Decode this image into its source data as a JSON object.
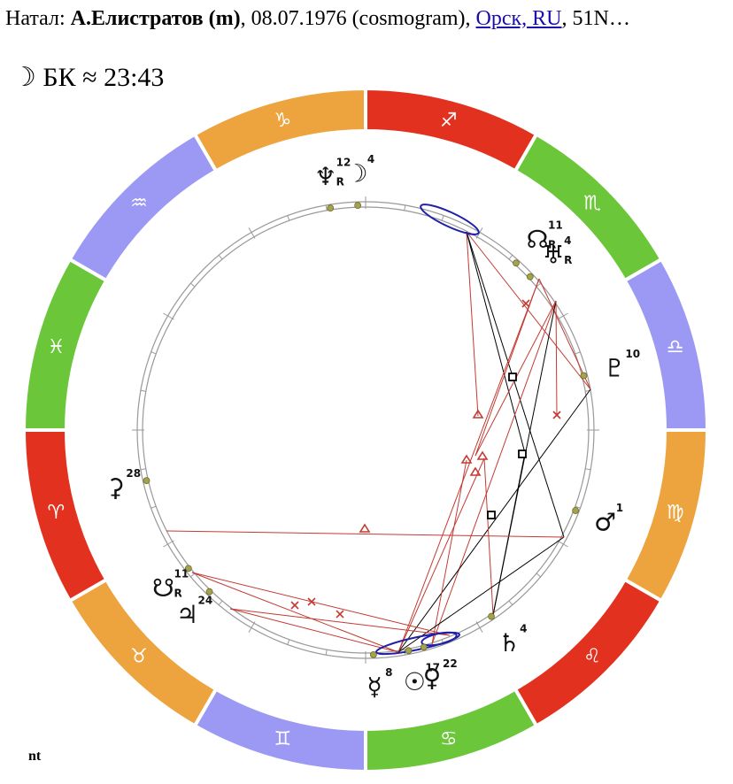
{
  "header": {
    "prefix": "Натал: ",
    "name": "А.Елистратов (m)",
    "date_text": ", 08.07.1976 (cosmogram), ",
    "place_link": "Орск, RU",
    "suffix": ", 51N…"
  },
  "subheader": {
    "moon_icon": "moon-crescent-icon",
    "text": "☽ БК ≈ 23:43"
  },
  "footer": {
    "text": "nt"
  },
  "colors": {
    "fire": "#e2311f",
    "earth": "#eea43e",
    "air": "#9c99f5",
    "water": "#6cc63a",
    "aspect_red": "#c43a33",
    "aspect_black": "#000000",
    "conjunction": "#1f1fa8",
    "planet_dot": "#a5a24a"
  },
  "wheel": {
    "signs": [
      {
        "name": "capricorn",
        "glyph": "♑",
        "element": "earth",
        "start": 0
      },
      {
        "name": "sagittarius",
        "glyph": "♐",
        "element": "fire",
        "start": 30
      },
      {
        "name": "scorpio",
        "glyph": "♏",
        "element": "water",
        "start": 60
      },
      {
        "name": "libra",
        "glyph": "♎",
        "element": "air",
        "start": 90
      },
      {
        "name": "virgo",
        "glyph": "♍",
        "element": "earth",
        "start": 120
      },
      {
        "name": "leo",
        "glyph": "♌",
        "element": "fire",
        "start": 150
      },
      {
        "name": "cancer",
        "glyph": "♋",
        "element": "water",
        "start": 180
      },
      {
        "name": "gemini",
        "glyph": "♊",
        "element": "air",
        "start": 210
      },
      {
        "name": "taurus",
        "glyph": "♉",
        "element": "earth",
        "start": 240
      },
      {
        "name": "aries",
        "glyph": "♈",
        "element": "fire",
        "start": 270
      },
      {
        "name": "pisces",
        "glyph": "♓",
        "element": "water",
        "start": 300
      },
      {
        "name": "aquarius",
        "glyph": "♒",
        "element": "air",
        "start": 330
      }
    ],
    "planets": [
      {
        "name": "neptune",
        "glyph": "♆",
        "degree": "12",
        "retro": true,
        "angle": -9
      },
      {
        "name": "moon",
        "glyph": "☽",
        "degree": "4",
        "angle": -2
      },
      {
        "name": "node",
        "glyph": "☊",
        "degree": "11",
        "retro": true,
        "angle": 42
      },
      {
        "name": "uranus",
        "glyph": "♅",
        "degree": "4",
        "retro": true,
        "angle": 47
      },
      {
        "name": "pluto",
        "glyph": "♇",
        "degree": "10",
        "angle": 76
      },
      {
        "name": "mars",
        "glyph": "♂",
        "degree": "1",
        "angle": 111
      },
      {
        "name": "saturn",
        "glyph": "♄",
        "degree": "4",
        "angle": 146
      },
      {
        "name": "venus",
        "glyph": "♀",
        "degree": "22",
        "angle": 165
      },
      {
        "name": "sun",
        "glyph": "☉",
        "degree": "17",
        "angle": 169
      },
      {
        "name": "mercury",
        "glyph": "☿",
        "degree": "8",
        "angle": 178
      },
      {
        "name": "jupiter",
        "glyph": "♃",
        "degree": "24",
        "angle": 224
      },
      {
        "name": "lilith",
        "glyph": "☋",
        "degree": "11",
        "retro": true,
        "angle": 232
      },
      {
        "name": "chiron",
        "glyph": "⚳",
        "degree": "28",
        "angle": 257
      }
    ]
  }
}
